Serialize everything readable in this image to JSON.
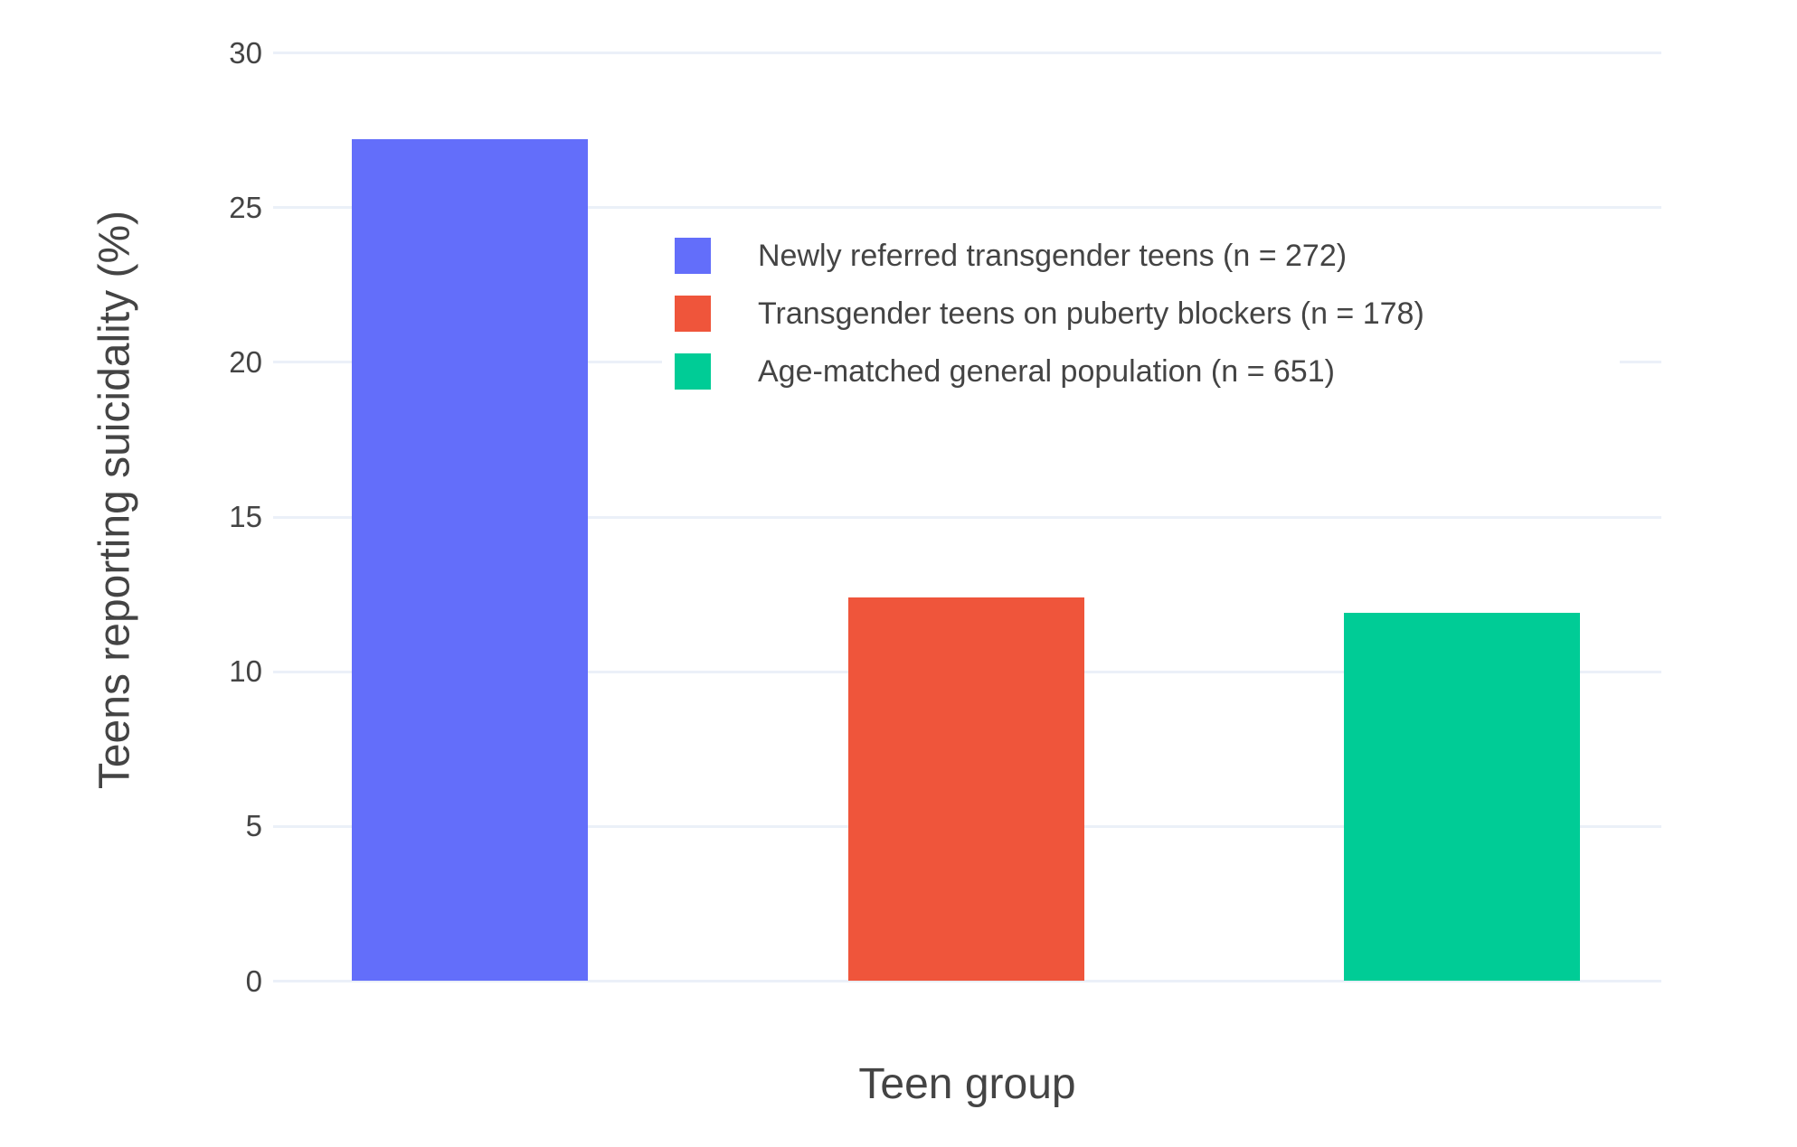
{
  "chart_data": {
    "type": "bar",
    "title": "",
    "xlabel": "Teen group",
    "ylabel": "Teens reporting suicidality (%)",
    "ylim": [
      0,
      30
    ],
    "yticks": [
      0,
      5,
      10,
      15,
      20,
      25,
      30
    ],
    "grid": true,
    "legend_position": "inside-top-right",
    "categories": [
      "Newly referred transgender teens (n = 272)",
      "Transgender teens on puberty blockers (n = 178)",
      "Age-matched general population (n = 651)"
    ],
    "series": [
      {
        "name": "Newly referred transgender teens (n = 272)",
        "value": 27.2,
        "color": "#636EFA"
      },
      {
        "name": "Transgender teens on puberty blockers (n = 178)",
        "value": 12.4,
        "color": "#EF553B"
      },
      {
        "name": "Age-matched general population (n = 651)",
        "value": 11.9,
        "color": "#00CC96"
      }
    ]
  },
  "colors": {
    "background": "#FFFFFF",
    "grid": "#EBF0F8",
    "text": "#444444",
    "legend_background": "#FFFFFF"
  }
}
